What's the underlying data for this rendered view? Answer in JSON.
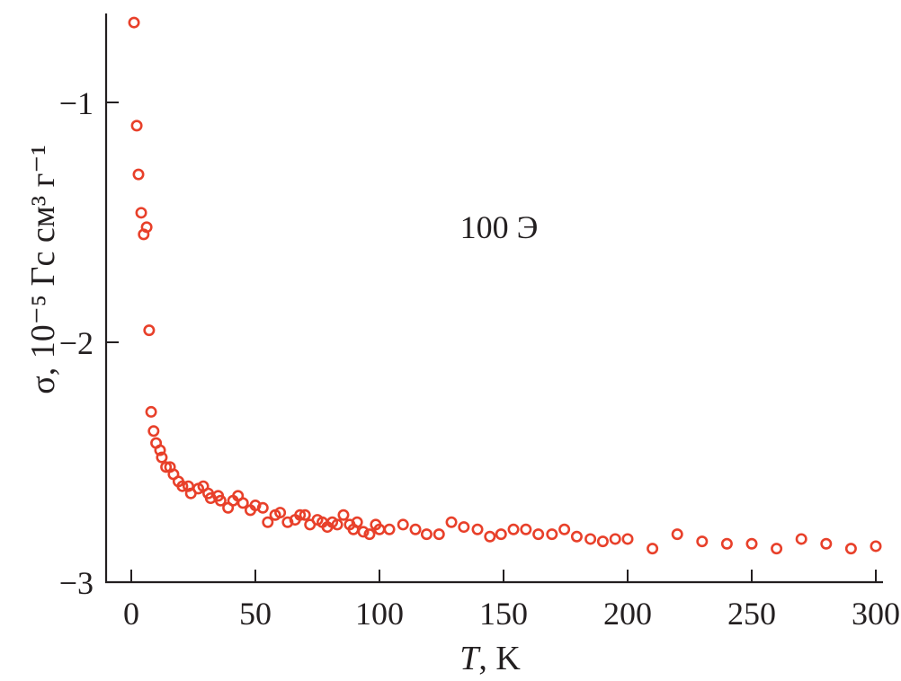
{
  "chart_data": {
    "type": "scatter",
    "xlabel_italic": "T",
    "xlabel_rest": ", K",
    "ylabel": "σ, 10⁻⁵ Гс см³ г⁻¹",
    "annotation": "100 Э",
    "xlim": [
      -10,
      302
    ],
    "ylim": [
      -3,
      -0.63
    ],
    "xticks": [
      0,
      50,
      100,
      150,
      200,
      250,
      300
    ],
    "xtick_labels": [
      "0",
      "50",
      "100",
      "150",
      "200",
      "250",
      "300"
    ],
    "yticks": [
      -1,
      -2,
      -3
    ],
    "ytick_labels": [
      "−1",
      "−2",
      "−3"
    ],
    "grid": false,
    "marker": "open-circle",
    "color": "#e8402a",
    "x": [
      1.1,
      2.2,
      2.9,
      4,
      5,
      6.2,
      7.2,
      8,
      9,
      10,
      11.6,
      12.3,
      14,
      15.6,
      17,
      19,
      20.6,
      23,
      24,
      27,
      29,
      31,
      32,
      35,
      36,
      39,
      41,
      43,
      45,
      48,
      50,
      53,
      55,
      58,
      60,
      63,
      66,
      68,
      70,
      72,
      75,
      77,
      79,
      81,
      83,
      85.5,
      88,
      89.5,
      91,
      93.5,
      96,
      98.5,
      100,
      104,
      109.5,
      114.5,
      119,
      124,
      129,
      134,
      139.5,
      144.5,
      149,
      154,
      159,
      164,
      169.5,
      174.5,
      179.5,
      185,
      190,
      195,
      200,
      210,
      220,
      230,
      240,
      250,
      260,
      270,
      280,
      290,
      300
    ],
    "y": [
      -0.667,
      -1.097,
      -1.3,
      -1.46,
      -1.55,
      -1.52,
      -1.95,
      -2.29,
      -2.37,
      -2.42,
      -2.45,
      -2.48,
      -2.52,
      -2.52,
      -2.55,
      -2.58,
      -2.6,
      -2.6,
      -2.63,
      -2.61,
      -2.6,
      -2.63,
      -2.65,
      -2.64,
      -2.66,
      -2.69,
      -2.66,
      -2.64,
      -2.67,
      -2.7,
      -2.68,
      -2.69,
      -2.75,
      -2.72,
      -2.71,
      -2.75,
      -2.74,
      -2.72,
      -2.72,
      -2.76,
      -2.74,
      -2.75,
      -2.77,
      -2.75,
      -2.76,
      -2.72,
      -2.76,
      -2.78,
      -2.75,
      -2.79,
      -2.8,
      -2.76,
      -2.78,
      -2.78,
      -2.76,
      -2.78,
      -2.8,
      -2.8,
      -2.75,
      -2.77,
      -2.78,
      -2.81,
      -2.8,
      -2.78,
      -2.78,
      -2.8,
      -2.8,
      -2.78,
      -2.81,
      -2.82,
      -2.83,
      -2.82,
      -2.82,
      -2.86,
      -2.8,
      -2.83,
      -2.84,
      -2.84,
      -2.86,
      -2.82,
      -2.84,
      -2.86,
      -2.85
    ]
  }
}
